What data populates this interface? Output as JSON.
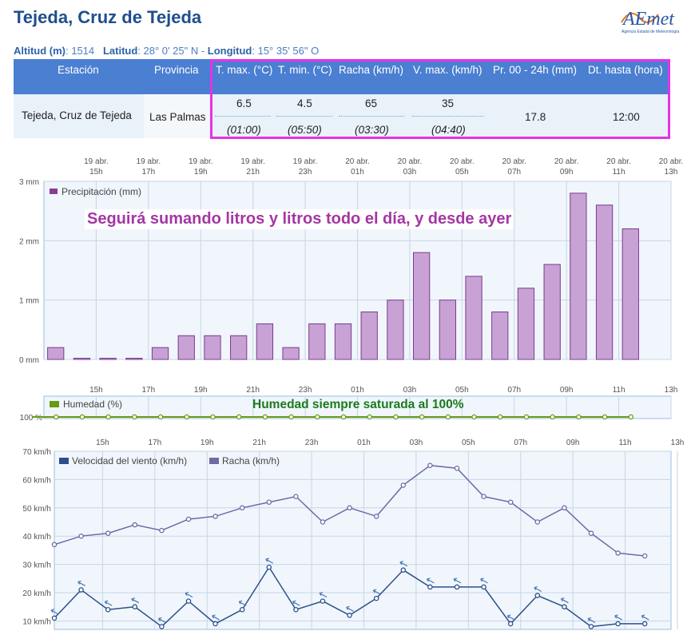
{
  "header": {
    "title": "Tejeda, Cruz de Tejeda",
    "altitud_label": "Altitud (m)",
    "altitud_value": ": 1514",
    "latitud_label": "Latitud",
    "latitud_value": ": 28° 0' 25\" N - ",
    "longitud_label": "Longitud",
    "longitud_value": ": 15° 35' 56\" O"
  },
  "logo": {
    "text": "AEmet",
    "subtitle": "Agencia Estatal de Meteorología"
  },
  "table": {
    "headers": [
      "Estación",
      "Provincia",
      "T. max. (°C)",
      "T. min. (°C)",
      "Racha (km/h)",
      "V. max. (km/h)",
      "Pr. 00 - 24h (mm)",
      "Dt. hasta (hora)"
    ],
    "station": "Tejeda, Cruz de Tejeda",
    "province": "Las Palmas",
    "tmax": "6.5",
    "tmax_time": "(01:00)",
    "tmin": "4.5",
    "tmin_time": "(05:50)",
    "racha": "65",
    "racha_time": "(03:30)",
    "vmax": "35",
    "vmax_time": "(04:40)",
    "precip": "17.8",
    "hasta": "12:00"
  },
  "annotations": {
    "precip_note": "Seguirá sumando litros y litros todo el día, y desde ayer",
    "humidity_note": "Humedad siempre saturada al 100%"
  },
  "colors": {
    "bar_fill": "#c8a2d4",
    "bar_stroke": "#7b3b8e",
    "humidity": "#6a9a12",
    "wind": "#2c4f8a",
    "gust": "#706aa6",
    "plot_bg": "#f0f6fc",
    "grid": "#c6d6e6"
  },
  "chart_data": [
    {
      "type": "bar",
      "legend": "Precipitación (mm)",
      "top_labels": [
        "19 abr.|15h",
        "19 abr.|17h",
        "19 abr.|19h",
        "19 abr.|21h",
        "19 abr.|23h",
        "20 abr.|01h",
        "20 abr.|03h",
        "20 abr.|05h",
        "20 abr.|07h",
        "20 abr.|09h",
        "20 abr.|11h",
        "20 abr.|13h"
      ],
      "x_ticks": [
        "15h",
        "17h",
        "19h",
        "21h",
        "23h",
        "01h",
        "03h",
        "05h",
        "07h",
        "09h",
        "11h",
        "13h"
      ],
      "y_ticks": [
        "0 mm",
        "1 mm",
        "2 mm",
        "3 mm"
      ],
      "ylim": [
        0,
        3
      ],
      "values": [
        0.2,
        0.02,
        0.02,
        0.02,
        0.2,
        0.4,
        0.4,
        0.4,
        0.6,
        0.2,
        0.6,
        0.6,
        0.8,
        1.0,
        1.8,
        1.0,
        1.4,
        0.8,
        1.2,
        1.6,
        2.8,
        2.6,
        2.2
      ]
    },
    {
      "type": "line",
      "legend": "Humedad (%)",
      "x_ticks": [
        "15h",
        "17h",
        "19h",
        "21h",
        "23h",
        "01h",
        "03h",
        "05h",
        "07h",
        "09h",
        "11h",
        "13h"
      ],
      "y_ticks": [
        "100 %"
      ],
      "values": [
        100,
        100,
        100,
        100,
        100,
        100,
        100,
        100,
        100,
        100,
        100,
        100,
        100,
        100,
        100,
        100,
        100,
        100,
        100,
        100,
        100,
        100,
        100
      ]
    },
    {
      "type": "line",
      "x_ticks": [
        "15h",
        "17h",
        "19h",
        "21h",
        "23h",
        "01h",
        "03h",
        "05h",
        "07h",
        "09h",
        "11h",
        "13h"
      ],
      "y_ticks": [
        "10 km/h",
        "20 km/h",
        "30 km/h",
        "40 km/h",
        "50 km/h",
        "60 km/h",
        "70 km/h"
      ],
      "ylim": [
        7,
        70
      ],
      "series": [
        {
          "name": "Velocidad del viento (km/h)",
          "values": [
            11,
            21,
            14,
            15,
            8,
            17,
            9,
            14,
            29,
            14,
            17,
            12,
            18,
            28,
            22,
            22,
            22,
            9,
            19,
            15,
            8,
            9,
            9
          ]
        },
        {
          "name": "Racha (km/h)",
          "values": [
            37,
            40,
            41,
            44,
            42,
            46,
            47,
            50,
            52,
            54,
            45,
            50,
            47,
            58,
            65,
            64,
            54,
            52,
            45,
            50,
            41,
            34,
            33
          ]
        }
      ]
    }
  ]
}
